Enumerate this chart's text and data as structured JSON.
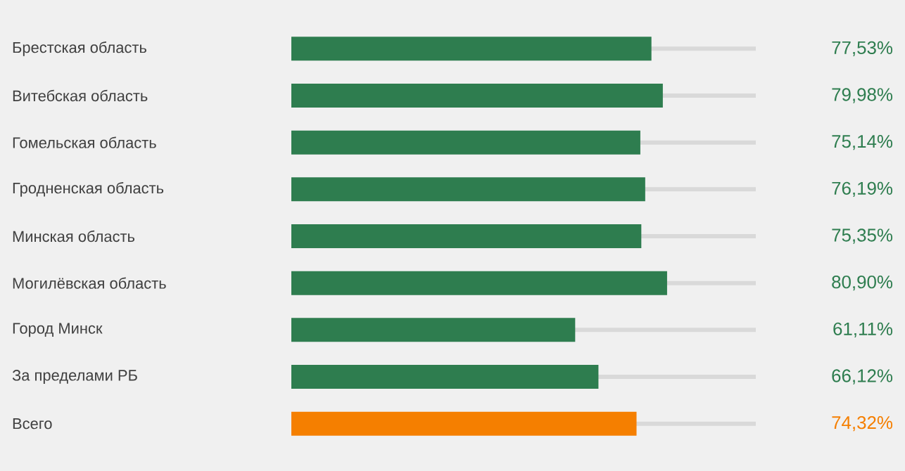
{
  "chart_data": {
    "type": "bar",
    "orientation": "horizontal",
    "categories": [
      "Брестская область",
      "Витебская область",
      "Гомельская область",
      "Гродненская область",
      "Минская область",
      "Могилёвская область",
      "Город Минск",
      "За пределами РБ",
      "Всего"
    ],
    "values": [
      77.53,
      79.98,
      75.14,
      76.19,
      75.35,
      80.9,
      61.11,
      66.12,
      74.32
    ],
    "value_labels": [
      "77,53%",
      "79,98%",
      "75,14%",
      "76,19%",
      "75,35%",
      "80,90%",
      "61,11%",
      "66,12%",
      "74,32%"
    ],
    "colors": [
      "#2e7d4f",
      "#2e7d4f",
      "#2e7d4f",
      "#2e7d4f",
      "#2e7d4f",
      "#2e7d4f",
      "#2e7d4f",
      "#2e7d4f",
      "#f57f00"
    ],
    "xlim": [
      0,
      100
    ]
  }
}
